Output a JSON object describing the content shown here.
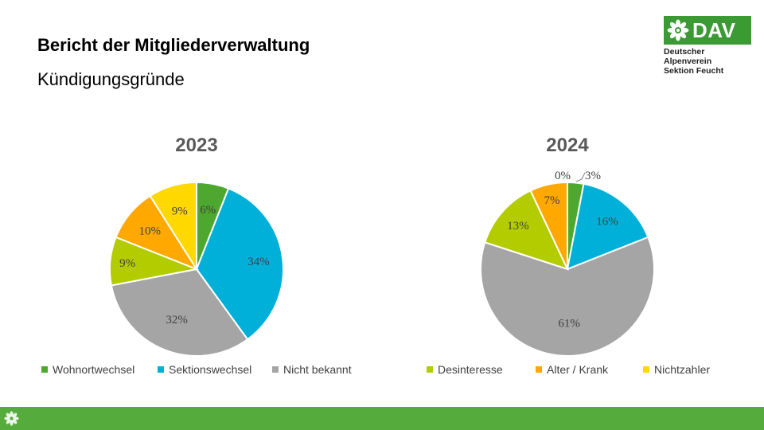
{
  "header": {
    "title": "Bericht der Mitgliederverwaltung",
    "subtitle": "Kündigungsgründe"
  },
  "logo": {
    "name": "DAV",
    "line1": "Deutscher Alpenverein",
    "line2": "Sektion Feucht",
    "color": "#3c9a35"
  },
  "legend": [
    {
      "label": "Wohnortwechsel",
      "color": "#4ea72e"
    },
    {
      "label": "Sektionswechsel",
      "color": "#00b0d8"
    },
    {
      "label": "Nicht bekannt",
      "color": "#a5a5a5"
    },
    {
      "label": "Desinteresse",
      "color": "#b3cc00"
    },
    {
      "label": "Alter / Krank",
      "color": "#ffa800"
    },
    {
      "label": "Nichtzahler",
      "color": "#ffd800"
    }
  ],
  "chart_data": [
    {
      "type": "pie",
      "title": "2023",
      "categories": [
        "Wohnortwechsel",
        "Sektionswechsel",
        "Nicht bekannt",
        "Desinteresse",
        "Alter / Krank",
        "Nichtzahler"
      ],
      "values": [
        6,
        34,
        32,
        9,
        10,
        9
      ],
      "labels": [
        "6%",
        "34%",
        "32%",
        "9%",
        "10%",
        "9%"
      ]
    },
    {
      "type": "pie",
      "title": "2024",
      "categories": [
        "Wohnortwechsel",
        "Sektionswechsel",
        "Nicht bekannt",
        "Desinteresse",
        "Alter / Krank",
        "Nichtzahler"
      ],
      "values": [
        3,
        16,
        61,
        13,
        7,
        0
      ],
      "labels": [
        "3%",
        "16%",
        "61%",
        "13%",
        "7%",
        "0%"
      ]
    }
  ],
  "colors": {
    "footer": "#55ab3b"
  }
}
